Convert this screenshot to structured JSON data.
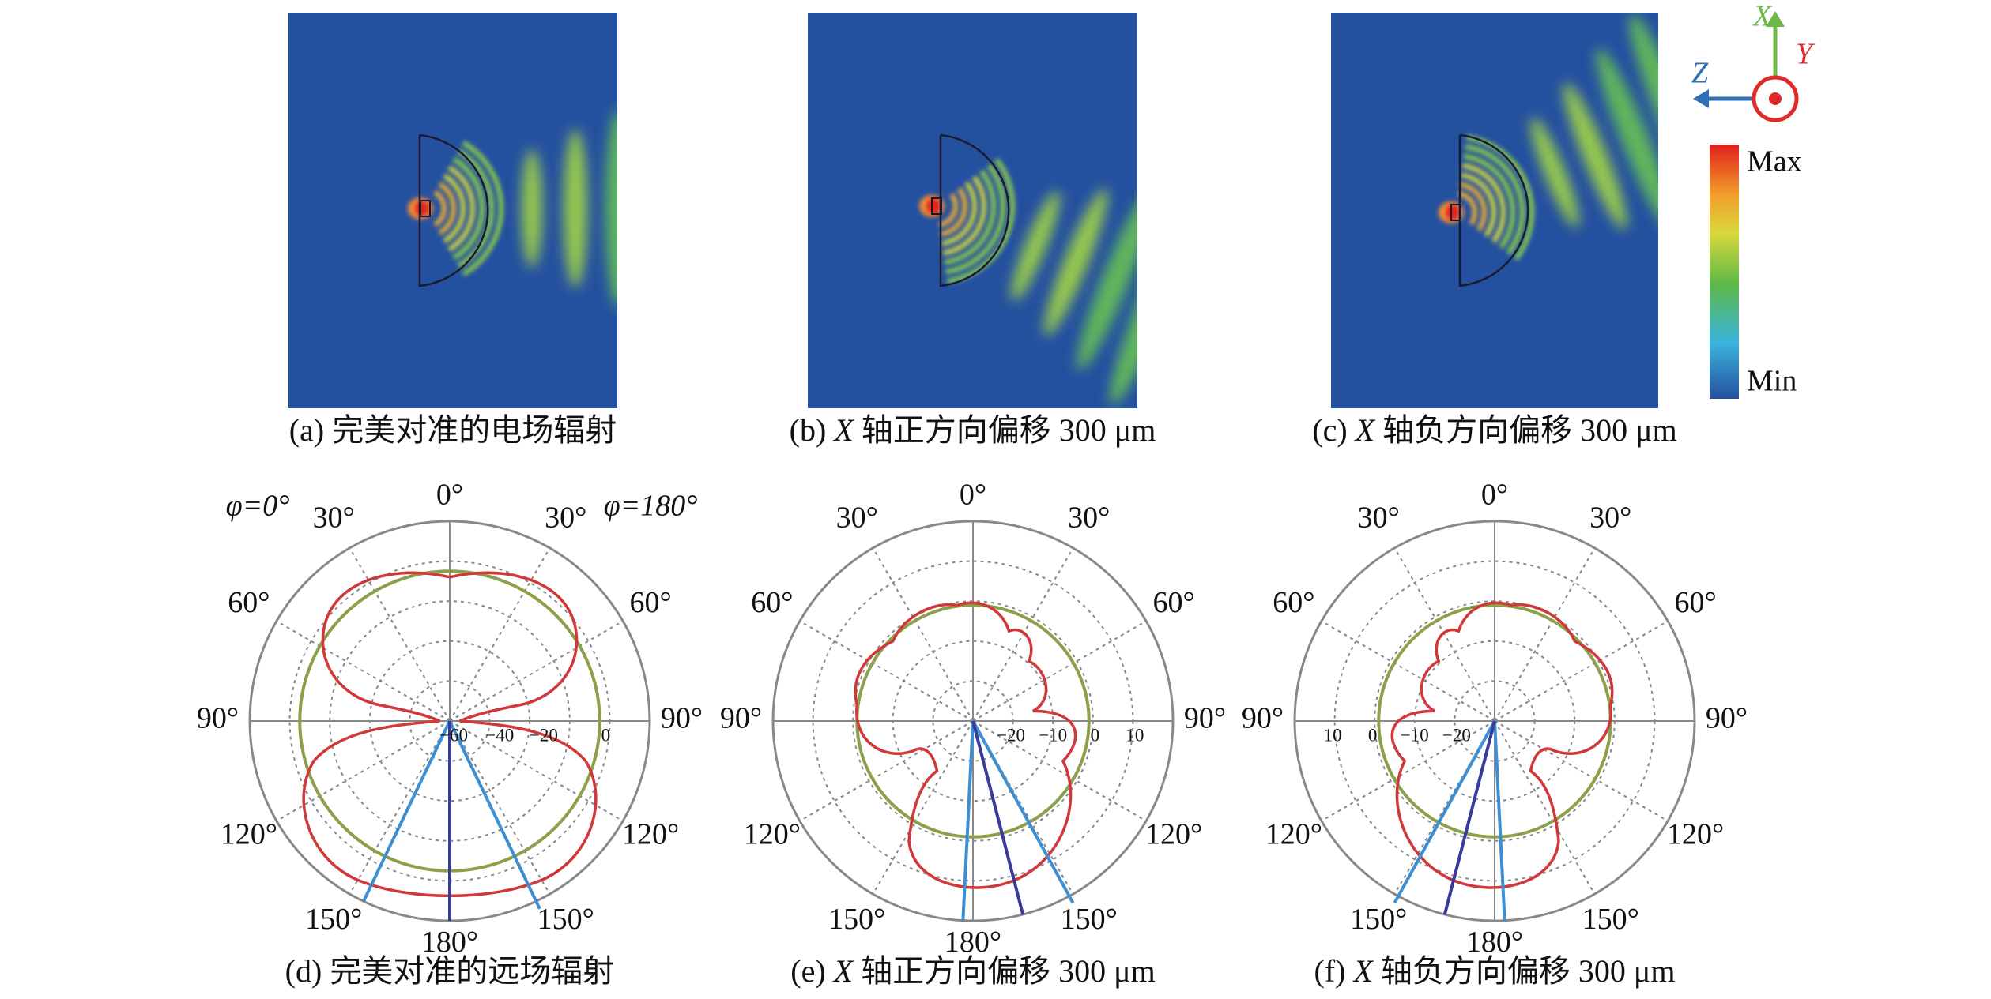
{
  "figure": {
    "field_panels": [
      {
        "caption": {
          "label": "(a)",
          "text": "完美对准的电场辐射"
        }
      },
      {
        "caption": {
          "label": "(b)",
          "axis": "X",
          "text": "轴正方向偏移 300 μm"
        }
      },
      {
        "caption": {
          "label": "(c)",
          "axis": "X",
          "text": "轴负方向偏移 300 μm"
        }
      }
    ],
    "colorbar": {
      "max": "Max",
      "min": "Min"
    },
    "axes": {
      "x": "X",
      "y": "Y",
      "z": "Z"
    },
    "polar_panels": [
      {
        "caption": {
          "label": "(d)",
          "text": "完美对准的远场辐射"
        },
        "angle_labels": [
          "0°",
          "30°",
          "60°",
          "90°",
          "120°",
          "150°",
          "180°",
          "150°",
          "120°",
          "90°",
          "60°",
          "30°"
        ],
        "radial_labels": [
          "−60",
          "−40",
          "−20",
          "0"
        ],
        "phi_labels": [
          "φ=0°",
          "φ=180°"
        ]
      },
      {
        "caption": {
          "label": "(e)",
          "axis": "X",
          "text": "轴正方向偏移 300 μm"
        },
        "angle_labels": [
          "0°",
          "30°",
          "60°",
          "90°",
          "120°",
          "150°",
          "180°",
          "150°",
          "120°",
          "90°",
          "60°",
          "30°"
        ],
        "radial_labels": [
          "−20",
          "−10",
          "0",
          "10"
        ]
      },
      {
        "caption": {
          "label": "(f)",
          "axis": "X",
          "text": "轴负方向偏移 300 μm"
        },
        "angle_labels": [
          "0°",
          "30°",
          "60°",
          "90°",
          "120°",
          "150°",
          "180°",
          "150°",
          "120°",
          "90°",
          "60°",
          "30°"
        ],
        "radial_labels": [
          "−20",
          "−10",
          "0",
          "10"
        ]
      }
    ]
  }
}
